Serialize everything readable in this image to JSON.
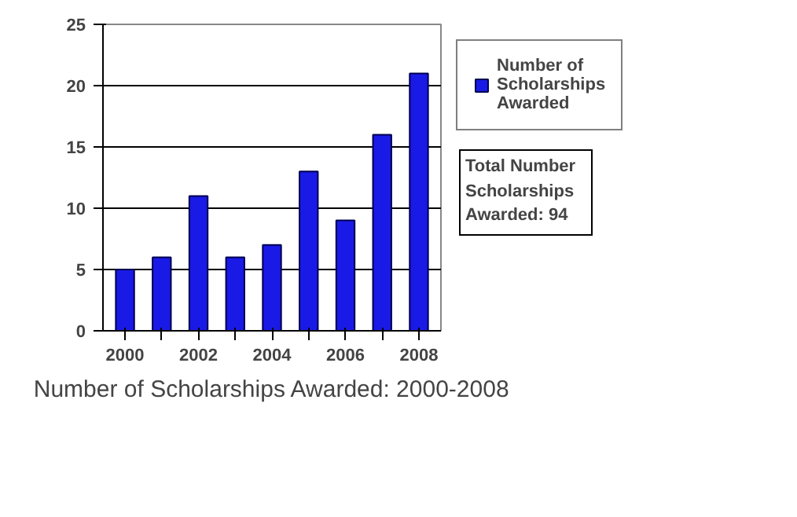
{
  "chart_data": {
    "type": "bar",
    "title": "Number of Scholarships Awarded: 2000-2008",
    "categories": [
      "2000",
      null,
      "2002",
      null,
      "2004",
      null,
      "2006",
      null,
      "2008"
    ],
    "series": [
      {
        "name": "Number of Scholarships Awarded",
        "color": "#1a1ae6",
        "values": [
          5,
          6,
          11,
          6,
          7,
          13,
          9,
          16,
          21
        ]
      }
    ],
    "ylim": [
      0,
      25
    ],
    "yticks": [
      0,
      5,
      10,
      15,
      20,
      25
    ],
    "grid": "y",
    "legend": "top right",
    "annotations": [
      "Total Number Scholarships Awarded: 94"
    ]
  }
}
